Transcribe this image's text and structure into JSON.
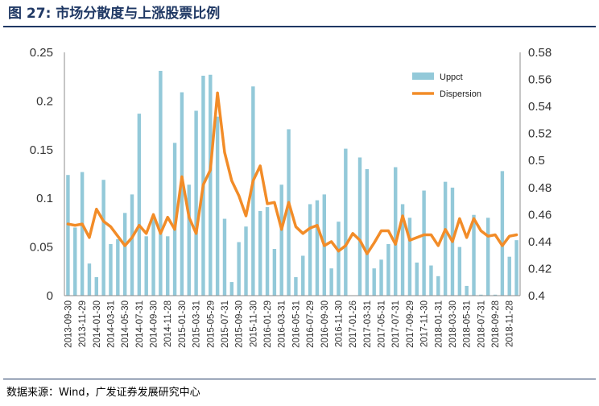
{
  "header": {
    "title": "图 27:  市场分散度与上涨股票比例"
  },
  "footer": {
    "source": "数据来源：Wind，广发证券发展研究中心"
  },
  "colors": {
    "bar": "#93c9d9",
    "line": "#f28c28",
    "axis_text": "#333333",
    "axis_line": "#8c8c8c"
  },
  "chart_data": {
    "type": "bar+line",
    "legend_position": "top-right",
    "grid": false,
    "x": [
      "2013-09-30",
      "2013-10-31",
      "2013-11-29",
      "2013-12-31",
      "2014-01-30",
      "2014-02-28",
      "2014-03-31",
      "2014-04-30",
      "2014-05-30",
      "2014-06-30",
      "2014-07-31",
      "2014-08-29",
      "2014-09-30",
      "2014-10-31",
      "2014-11-28",
      "2014-12-31",
      "2015-01-30",
      "2015-02-27",
      "2015-03-31",
      "2015-04-30",
      "2015-05-29",
      "2015-06-30",
      "2015-07-31",
      "2015-08-31",
      "2015-09-30",
      "2015-10-30",
      "2015-11-30",
      "2015-12-31",
      "2016-01-29",
      "2016-02-29",
      "2016-03-31",
      "2016-04-29",
      "2016-05-31",
      "2016-06-30",
      "2016-07-29",
      "2016-08-31",
      "2016-09-30",
      "2016-10-31",
      "2016-11-30",
      "2016-12-30",
      "2017-01-26",
      "2017-02-28",
      "2017-03-31",
      "2017-04-28",
      "2017-05-31",
      "2017-06-30",
      "2017-07-31",
      "2017-08-31",
      "2017-09-29",
      "2017-10-31",
      "2017-11-30",
      "2017-12-29",
      "2018-01-31",
      "2018-02-28",
      "2018-03-30",
      "2018-04-27",
      "2018-05-31",
      "2018-06-29",
      "2018-07-31",
      "2018-08-31",
      "2018-09-28",
      "2018-10-31",
      "2018-11-28",
      "2018-12-28"
    ],
    "x_tick_labels": [
      "2013-09-30",
      "2013-11-29",
      "2014-01-30",
      "2014-03-31",
      "2014-05-30",
      "2014-07-31",
      "2014-09-30",
      "2014-11-28",
      "2015-01-30",
      "2015-03-31",
      "2015-05-29",
      "2015-07-31",
      "2015-09-30",
      "2015-11-30",
      "2016-01-29",
      "2016-03-31",
      "2016-05-31",
      "2016-07-29",
      "2016-09-30",
      "2016-11-30",
      "2017-01-26",
      "2017-03-31",
      "2017-05-31",
      "2017-07-31",
      "2017-09-29",
      "2017-11-30",
      "2018-01-31",
      "2018-03-30",
      "2018-05-31",
      "2018-07-31",
      "2018-09-28",
      "2018-11-28"
    ],
    "series": [
      {
        "name": "Uppct",
        "type": "bar",
        "axis": "left",
        "values": [
          0.124,
          0.07,
          0.127,
          0.033,
          0.019,
          0.119,
          0.053,
          0.058,
          0.085,
          0.104,
          0.187,
          0.061,
          0.08,
          0.231,
          0.061,
          0.157,
          0.209,
          0.114,
          0.19,
          0.226,
          0.227,
          0.184,
          0.079,
          0.014,
          0.055,
          0.071,
          0.215,
          0.087,
          0.091,
          0.048,
          0.114,
          0.171,
          0.019,
          0.041,
          0.094,
          0.098,
          0.104,
          0.028,
          0.076,
          0.151,
          0.0,
          0.142,
          0.13,
          0.028,
          0.037,
          0.053,
          0.132,
          0.094,
          0.08,
          0.034,
          0.108,
          0.031,
          0.02,
          0.117,
          0.111,
          0.05,
          0.01,
          0.083,
          0.001,
          0.08,
          0.001,
          0.128,
          0.04,
          0.057
        ]
      },
      {
        "name": "Dispersion",
        "type": "line",
        "axis": "right",
        "values": [
          0.453,
          0.452,
          0.453,
          0.443,
          0.464,
          0.455,
          0.451,
          0.444,
          0.437,
          0.443,
          0.452,
          0.446,
          0.46,
          0.446,
          0.458,
          0.449,
          0.488,
          0.458,
          0.446,
          0.482,
          0.493,
          0.55,
          0.506,
          0.485,
          0.474,
          0.459,
          0.485,
          0.496,
          0.468,
          0.469,
          0.449,
          0.469,
          0.451,
          0.446,
          0.45,
          0.452,
          0.437,
          0.44,
          0.433,
          0.437,
          0.446,
          0.441,
          0.431,
          0.439,
          0.448,
          0.448,
          0.438,
          0.459,
          0.441,
          0.443,
          0.445,
          0.445,
          0.437,
          0.449,
          0.44,
          0.457,
          0.443,
          0.457,
          0.448,
          0.444,
          0.445,
          0.437,
          0.444,
          0.445
        ]
      }
    ],
    "ylim_left": [
      0,
      0.25
    ],
    "yticks_left": [
      "0",
      "0.05",
      "0.1",
      "0.15",
      "0.2",
      "0.25"
    ],
    "ylim_right": [
      0.4,
      0.58
    ],
    "yticks_right": [
      "0.4",
      "0.42",
      "0.44",
      "0.46",
      "0.48",
      "0.5",
      "0.52",
      "0.54",
      "0.56",
      "0.58"
    ]
  }
}
